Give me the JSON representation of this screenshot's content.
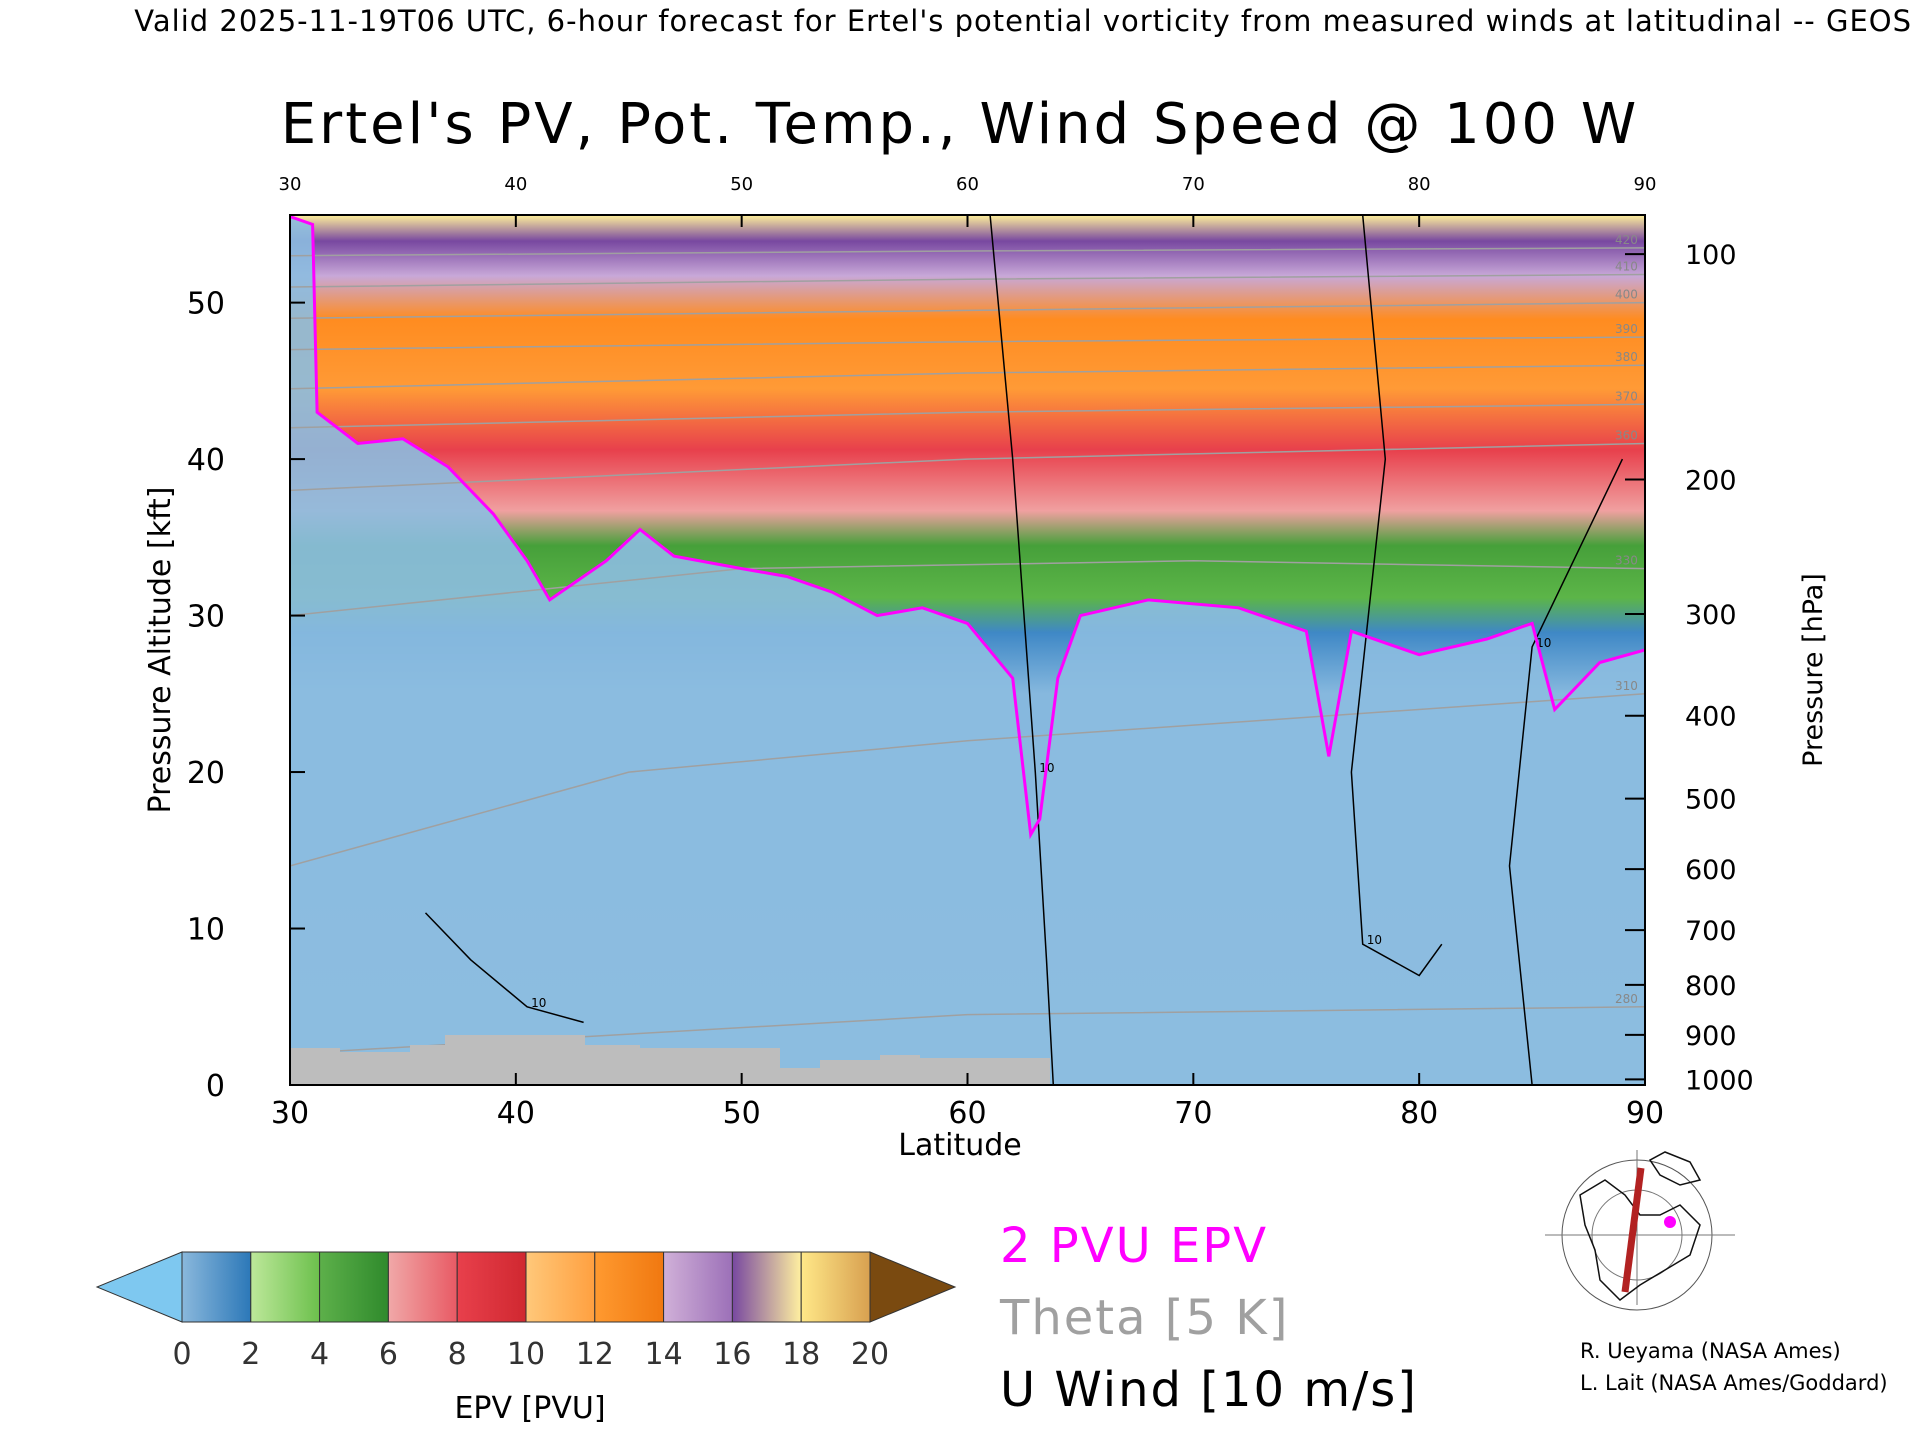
{
  "header": "Valid 2025-11-19T06 UTC, 6-hour forecast for Ertel's potential vorticity from measured winds at latitudinal -- GEOS",
  "title": "Ertel's PV, Pot. Temp., Wind Speed @ 100 W",
  "chart_data": {
    "type": "heatmap",
    "title": "Ertel's PV, Pot. Temp., Wind Speed @ 100 W",
    "xlabel": "Latitude",
    "ylabel": "Pressure Altitude [kft]",
    "y2label": "Pressure [hPa]",
    "xlim": [
      30,
      90
    ],
    "ylim": [
      0,
      55.6
    ],
    "x_ticks": [
      30,
      40,
      50,
      60,
      70,
      80,
      90
    ],
    "y_ticks": [
      0,
      10,
      20,
      30,
      40,
      50
    ],
    "pressure_ticks": [
      {
        "p": 100,
        "alt": 53.1
      },
      {
        "p": 200,
        "alt": 38.7
      },
      {
        "p": 300,
        "alt": 30.1
      },
      {
        "p": 400,
        "alt": 23.6
      },
      {
        "p": 500,
        "alt": 18.3
      },
      {
        "p": 600,
        "alt": 13.8
      },
      {
        "p": 700,
        "alt": 9.9
      },
      {
        "p": 800,
        "alt": 6.4
      },
      {
        "p": 900,
        "alt": 3.2
      },
      {
        "p": 1000,
        "alt": 0.36
      }
    ],
    "pv_2pvu_altitude": [
      {
        "lat": 30.0,
        "alt": 55.5
      },
      {
        "lat": 31.0,
        "alt": 55.0
      },
      {
        "lat": 31.2,
        "alt": 43.0
      },
      {
        "lat": 33.0,
        "alt": 41.0
      },
      {
        "lat": 35.0,
        "alt": 41.3
      },
      {
        "lat": 37.0,
        "alt": 39.5
      },
      {
        "lat": 39.0,
        "alt": 36.5
      },
      {
        "lat": 40.5,
        "alt": 33.5
      },
      {
        "lat": 41.5,
        "alt": 31.0
      },
      {
        "lat": 44.0,
        "alt": 33.5
      },
      {
        "lat": 45.5,
        "alt": 35.5
      },
      {
        "lat": 47.0,
        "alt": 33.8
      },
      {
        "lat": 50.0,
        "alt": 33.0
      },
      {
        "lat": 52.0,
        "alt": 32.5
      },
      {
        "lat": 54.0,
        "alt": 31.5
      },
      {
        "lat": 56.0,
        "alt": 30.0
      },
      {
        "lat": 58.0,
        "alt": 30.5
      },
      {
        "lat": 60.0,
        "alt": 29.5
      },
      {
        "lat": 62.0,
        "alt": 26.0
      },
      {
        "lat": 62.8,
        "alt": 16.0
      },
      {
        "lat": 63.2,
        "alt": 17.0
      },
      {
        "lat": 64.0,
        "alt": 26.0
      },
      {
        "lat": 65.0,
        "alt": 30.0
      },
      {
        "lat": 68.0,
        "alt": 31.0
      },
      {
        "lat": 72.0,
        "alt": 30.5
      },
      {
        "lat": 75.0,
        "alt": 29.0
      },
      {
        "lat": 76.0,
        "alt": 21.0
      },
      {
        "lat": 77.0,
        "alt": 29.0
      },
      {
        "lat": 80.0,
        "alt": 27.5
      },
      {
        "lat": 83.0,
        "alt": 28.5
      },
      {
        "lat": 85.0,
        "alt": 29.5
      },
      {
        "lat": 86.0,
        "alt": 24.0
      },
      {
        "lat": 88.0,
        "alt": 27.0
      },
      {
        "lat": 90.0,
        "alt": 27.8
      }
    ],
    "theta_contours": [
      {
        "label": "280",
        "points": [
          {
            "lat": 30,
            "alt": 2.0
          },
          {
            "lat": 60,
            "alt": 4.5
          },
          {
            "lat": 90,
            "alt": 5.0
          }
        ]
      },
      {
        "label": "310",
        "points": [
          {
            "lat": 30,
            "alt": 14.0
          },
          {
            "lat": 45,
            "alt": 20.0
          },
          {
            "lat": 60,
            "alt": 22.0
          },
          {
            "lat": 90,
            "alt": 25.0
          }
        ]
      },
      {
        "label": "330",
        "points": [
          {
            "lat": 30,
            "alt": 30.0
          },
          {
            "lat": 50,
            "alt": 33.0
          },
          {
            "lat": 70,
            "alt": 33.5
          },
          {
            "lat": 90,
            "alt": 33.0
          }
        ]
      },
      {
        "label": "360",
        "points": [
          {
            "lat": 30,
            "alt": 38.0
          },
          {
            "lat": 60,
            "alt": 40.0
          },
          {
            "lat": 90,
            "alt": 41.0
          }
        ]
      },
      {
        "label": "370",
        "points": [
          {
            "lat": 30,
            "alt": 42.0
          },
          {
            "lat": 60,
            "alt": 43.0
          },
          {
            "lat": 90,
            "alt": 43.5
          }
        ]
      },
      {
        "label": "380",
        "points": [
          {
            "lat": 30,
            "alt": 44.5
          },
          {
            "lat": 60,
            "alt": 45.5
          },
          {
            "lat": 90,
            "alt": 46.0
          }
        ]
      },
      {
        "label": "390",
        "points": [
          {
            "lat": 30,
            "alt": 47.0
          },
          {
            "lat": 60,
            "alt": 47.5
          },
          {
            "lat": 90,
            "alt": 47.8
          }
        ]
      },
      {
        "label": "400",
        "points": [
          {
            "lat": 30,
            "alt": 49.0
          },
          {
            "lat": 60,
            "alt": 49.5
          },
          {
            "lat": 90,
            "alt": 50.0
          }
        ]
      },
      {
        "label": "410",
        "points": [
          {
            "lat": 30,
            "alt": 51.0
          },
          {
            "lat": 60,
            "alt": 51.5
          },
          {
            "lat": 90,
            "alt": 51.8
          }
        ]
      },
      {
        "label": "420",
        "points": [
          {
            "lat": 30,
            "alt": 53.0
          },
          {
            "lat": 60,
            "alt": 53.3
          },
          {
            "lat": 90,
            "alt": 53.5
          }
        ]
      }
    ],
    "u_wind_contours": [
      {
        "label": "10",
        "points": [
          {
            "lat": 61.0,
            "alt": 55.6
          },
          {
            "lat": 62.0,
            "alt": 40.0
          },
          {
            "lat": 63.0,
            "alt": 20.0
          },
          {
            "lat": 63.5,
            "alt": 8.0
          },
          {
            "lat": 63.8,
            "alt": 0.0
          }
        ]
      },
      {
        "label": "10",
        "points": [
          {
            "lat": 77.5,
            "alt": 55.6
          },
          {
            "lat": 78.5,
            "alt": 40.0
          },
          {
            "lat": 77.0,
            "alt": 20.0
          },
          {
            "lat": 77.5,
            "alt": 9.0
          },
          {
            "lat": 80.0,
            "alt": 7.0
          },
          {
            "lat": 81.0,
            "alt": 9.0
          }
        ]
      },
      {
        "label": "10",
        "points": [
          {
            "lat": 36.0,
            "alt": 11.0
          },
          {
            "lat": 38.0,
            "alt": 8.0
          },
          {
            "lat": 40.5,
            "alt": 5.0
          },
          {
            "lat": 43.0,
            "alt": 4.0
          }
        ]
      },
      {
        "label": "10",
        "points": [
          {
            "lat": 85.0,
            "alt": 0.0
          },
          {
            "lat": 84.0,
            "alt": 14.0
          },
          {
            "lat": 85.0,
            "alt": 28.0
          },
          {
            "lat": 89.0,
            "alt": 40.0
          }
        ]
      }
    ],
    "legend_entries": [
      "2 PVU EPV",
      "Theta [5 K]",
      "U Wind [10 m/s]"
    ],
    "colorbar": {
      "label": "EPV [PVU]",
      "ticks": [
        0,
        2,
        4,
        6,
        8,
        10,
        12,
        14,
        16,
        18,
        20
      ],
      "under_color": "#7ec8f0",
      "over_color": "#7a4a10",
      "segments": [
        {
          "from": 0,
          "to": 2,
          "colors": [
            "#8ab8dc",
            "#2c78b8"
          ]
        },
        {
          "from": 2,
          "to": 4,
          "colors": [
            "#bde89a",
            "#6cc04c"
          ]
        },
        {
          "from": 4,
          "to": 6,
          "colors": [
            "#5db04a",
            "#2f8a2c"
          ]
        },
        {
          "from": 6,
          "to": 8,
          "colors": [
            "#f0a8a8",
            "#e85a64"
          ]
        },
        {
          "from": 8,
          "to": 10,
          "colors": [
            "#e8404c",
            "#d02830"
          ]
        },
        {
          "from": 10,
          "to": 12,
          "colors": [
            "#ffc87a",
            "#ffa040"
          ]
        },
        {
          "from": 12,
          "to": 14,
          "colors": [
            "#ff9a30",
            "#f07810"
          ]
        },
        {
          "from": 14,
          "to": 16,
          "colors": [
            "#d0b0d8",
            "#9c70b8"
          ]
        },
        {
          "from": 16,
          "to": 18,
          "colors": [
            "#7848a0",
            "#fff0a0"
          ]
        },
        {
          "from": 18,
          "to": 20,
          "colors": [
            "#ffe888",
            "#d8a050"
          ]
        }
      ]
    },
    "colors": {
      "pv_2pvu": "#ff00ff",
      "theta": "#a0a0a0",
      "u_wind": "#000000",
      "terrain": "#bdbdbd"
    }
  },
  "credits": [
    "R. Ueyama (NASA Ames)",
    "L. Lait (NASA Ames/Goddard)"
  ]
}
